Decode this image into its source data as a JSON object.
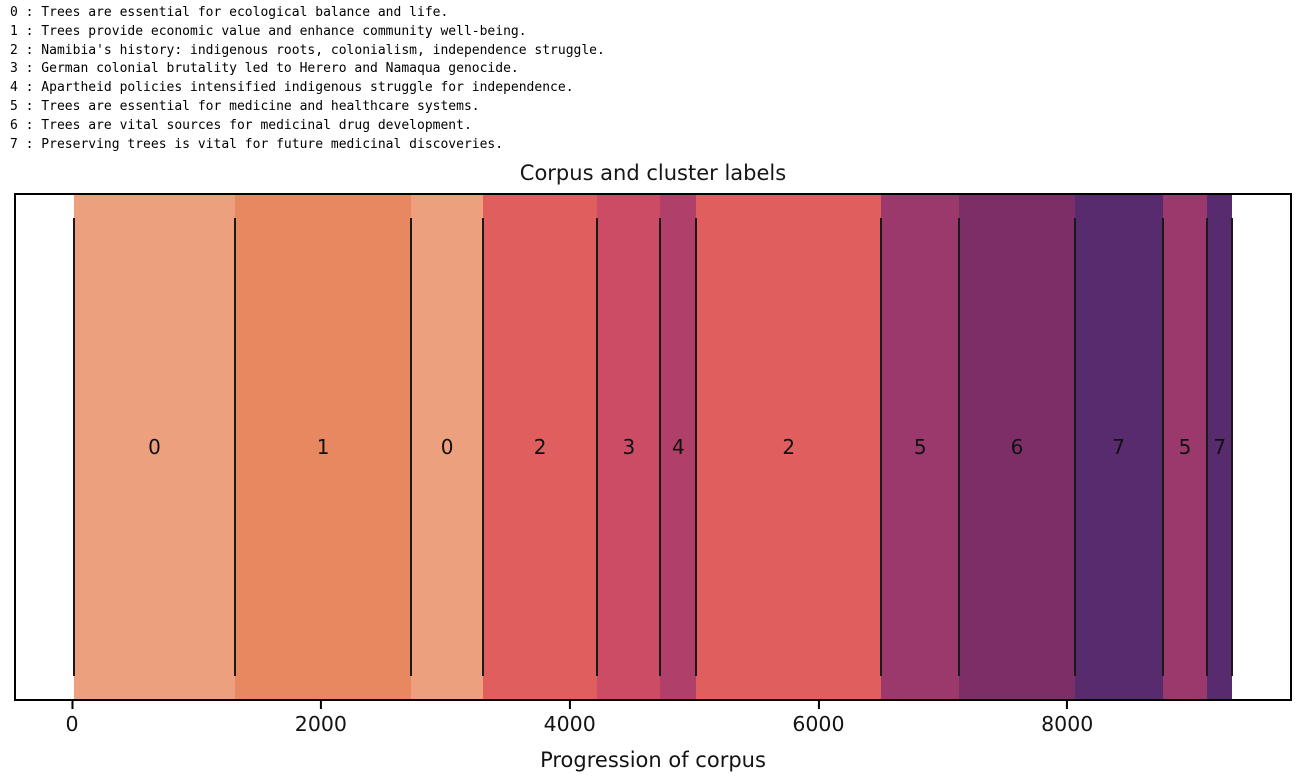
{
  "legend": {
    "lines": [
      "0 : Trees are essential for ecological balance and life.",
      "1 : Trees provide economic value and enhance community well-being.",
      "2 : Namibia's history: indigenous roots, colonialism, independence struggle.",
      "3 : German colonial brutality led to Herero and Namaqua genocide.",
      "4 : Apartheid policies intensified indigenous struggle for independence.",
      "5 : Trees are essential for medicine and healthcare systems.",
      "6 : Trees are vital sources for medicinal drug development.",
      "7 : Preserving trees is vital for future medicinal discoveries."
    ]
  },
  "chart_data": {
    "type": "heatmap",
    "title": "Corpus and cluster labels",
    "xlabel": "Progression of corpus",
    "ylabel": "",
    "xlim": [
      -467,
      9807
    ],
    "xticks": [
      0,
      2000,
      4000,
      6000,
      8000
    ],
    "corpus_length": 9340,
    "grid": false,
    "legend_position": "top-left-outside",
    "cluster_colors": {
      "0": "#ECA07E",
      "1": "#E88860",
      "2": "#E05E5E",
      "3": "#CC4C66",
      "4": "#B03F6A",
      "5": "#9C396C",
      "6": "#7E2E67",
      "7": "#572B6E"
    },
    "segments": [
      {
        "start": 0,
        "end": 1300,
        "label": "0",
        "color": "#ECA07E"
      },
      {
        "start": 1300,
        "end": 2720,
        "label": "1",
        "color": "#E88860"
      },
      {
        "start": 2720,
        "end": 3300,
        "label": "0",
        "color": "#ECA07E"
      },
      {
        "start": 3300,
        "end": 4220,
        "label": "2",
        "color": "#E05E5E"
      },
      {
        "start": 4220,
        "end": 4730,
        "label": "3",
        "color": "#CC4C66"
      },
      {
        "start": 4730,
        "end": 5020,
        "label": "4",
        "color": "#B03F6A"
      },
      {
        "start": 5020,
        "end": 6510,
        "label": "2",
        "color": "#E05E5E"
      },
      {
        "start": 6510,
        "end": 7140,
        "label": "5",
        "color": "#9C396C"
      },
      {
        "start": 7140,
        "end": 8070,
        "label": "6",
        "color": "#7E2E67"
      },
      {
        "start": 8070,
        "end": 8780,
        "label": "7",
        "color": "#572B6E"
      },
      {
        "start": 8780,
        "end": 9140,
        "label": "5",
        "color": "#9C396C"
      },
      {
        "start": 9140,
        "end": 9340,
        "label": "7",
        "color": "#572B6E"
      }
    ],
    "boundaries": [
      0,
      1300,
      2720,
      3300,
      4220,
      4730,
      5020,
      6510,
      7140,
      8070,
      8780,
      9140,
      9340
    ]
  }
}
